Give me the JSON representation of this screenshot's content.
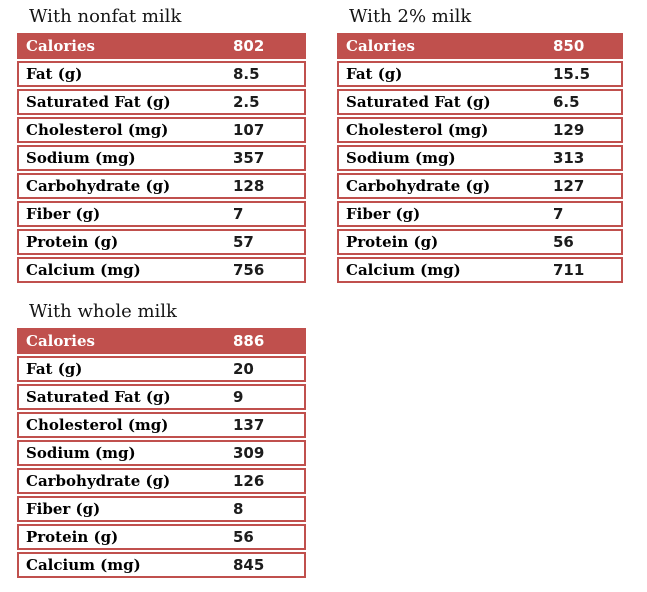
{
  "colors": {
    "table_red": "#C0504D",
    "header_text": "#FFFFFF",
    "label_text": "#000000",
    "background": "#FFFFFF"
  },
  "tables": [
    {
      "title": "With nonfat milk",
      "header": {
        "label": "Calories",
        "value": "802"
      },
      "rows": [
        {
          "label": "Fat (g)",
          "value": "8.5"
        },
        {
          "label": "Saturated Fat (g)",
          "value": "2.5"
        },
        {
          "label": "Cholesterol (mg)",
          "value": "107"
        },
        {
          "label": "Sodium (mg)",
          "value": "357"
        },
        {
          "label": "Carbohydrate (g)",
          "value": "128"
        },
        {
          "label": "Fiber (g)",
          "value": "7"
        },
        {
          "label": "Protein (g)",
          "value": "57"
        },
        {
          "label": "Calcium (mg)",
          "value": "756"
        }
      ]
    },
    {
      "title": "With 2% milk",
      "header": {
        "label": "Calories",
        "value": "850"
      },
      "rows": [
        {
          "label": "Fat (g)",
          "value": "15.5"
        },
        {
          "label": "Saturated Fat (g)",
          "value": "6.5"
        },
        {
          "label": "Cholesterol (mg)",
          "value": "129"
        },
        {
          "label": "Sodium (mg)",
          "value": "313"
        },
        {
          "label": "Carbohydrate (g)",
          "value": "127"
        },
        {
          "label": "Fiber (g)",
          "value": "7"
        },
        {
          "label": "Protein (g)",
          "value": "56"
        },
        {
          "label": "Calcium (mg)",
          "value": "711"
        }
      ]
    },
    {
      "title": "With whole milk",
      "header": {
        "label": "Calories",
        "value": "886"
      },
      "rows": [
        {
          "label": "Fat (g)",
          "value": "20"
        },
        {
          "label": "Saturated Fat (g)",
          "value": "9"
        },
        {
          "label": "Cholesterol (mg)",
          "value": "137"
        },
        {
          "label": "Sodium (mg)",
          "value": "309"
        },
        {
          "label": "Carbohydrate (g)",
          "value": "126"
        },
        {
          "label": "Fiber (g)",
          "value": "8"
        },
        {
          "label": "Protein (g)",
          "value": "56"
        },
        {
          "label": "Calcium (mg)",
          "value": "845"
        }
      ]
    }
  ]
}
